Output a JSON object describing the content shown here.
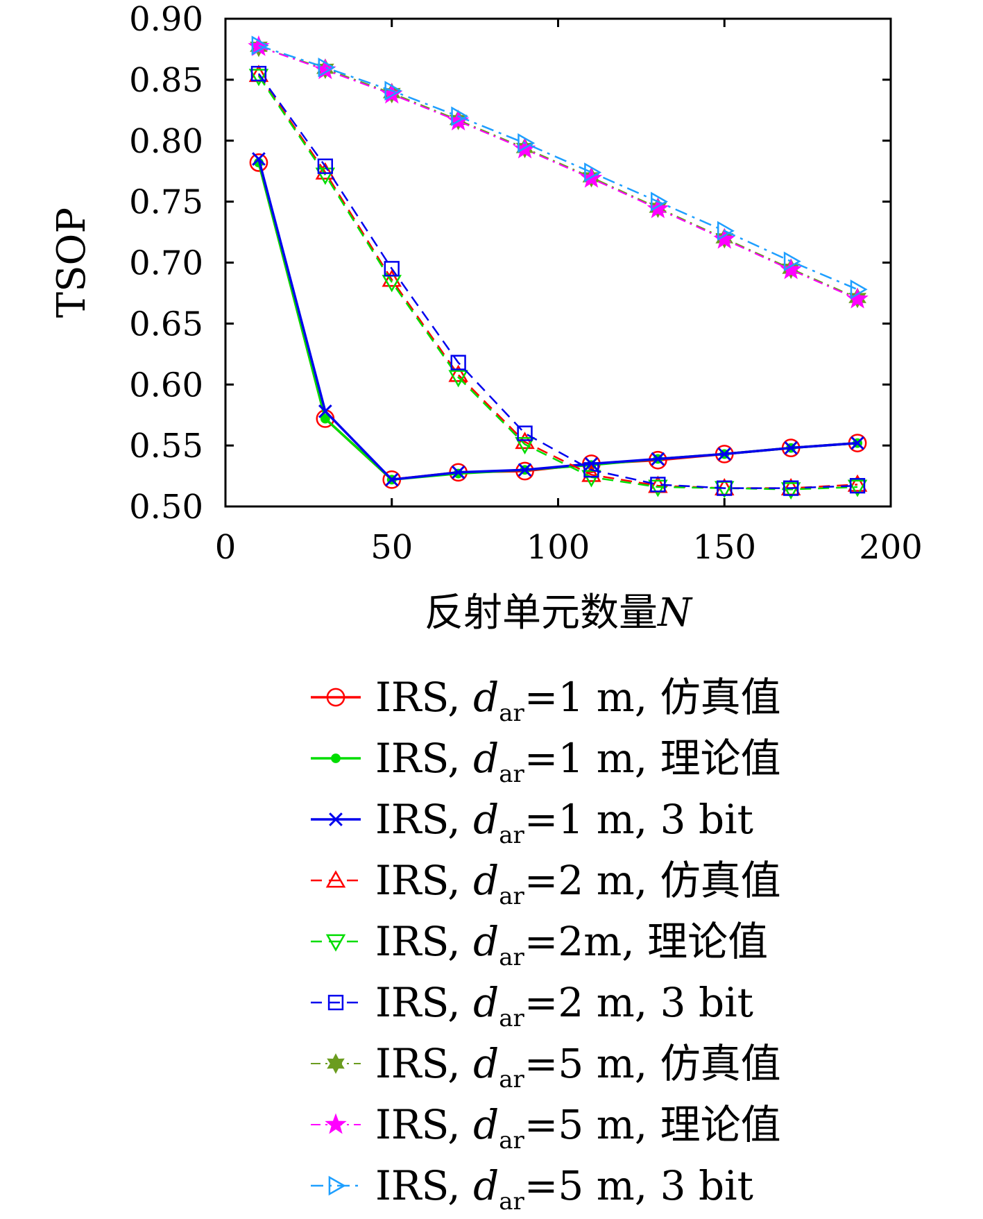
{
  "chart_data": {
    "type": "line",
    "title": "",
    "xlabel": "反射单元数量",
    "xlabel_var": "N",
    "ylabel": "TSOP",
    "xlim": [
      0,
      200
    ],
    "ylim": [
      0.5,
      0.9
    ],
    "xticks": [
      0,
      50,
      100,
      150,
      200
    ],
    "xtick_labels": [
      "0",
      "50",
      "100",
      "150",
      "200"
    ],
    "yticks": [
      0.5,
      0.55,
      0.6,
      0.65,
      0.7,
      0.75,
      0.8,
      0.85,
      0.9
    ],
    "ytick_labels": [
      "0.50",
      "0.55",
      "0.60",
      "0.65",
      "0.70",
      "0.75",
      "0.80",
      "0.85",
      "0.90"
    ],
    "grid": false,
    "legend_position": "below",
    "x": [
      10,
      30,
      50,
      70,
      90,
      110,
      130,
      150,
      170,
      190
    ],
    "series": [
      {
        "name": "IRS, d_ar=1 m, 仿真值",
        "legend": {
          "pre": "IRS, ",
          "d": "d",
          "sub": "ar",
          "post": "=1 m, 仿真值"
        },
        "color": "#ff0000",
        "dash": "solid",
        "marker": "circle",
        "values": [
          0.782,
          0.572,
          0.522,
          0.528,
          0.529,
          0.535,
          0.538,
          0.543,
          0.548,
          0.552
        ]
      },
      {
        "name": "IRS, d_ar=1 m, 理论值",
        "legend": {
          "pre": "IRS, ",
          "d": "d",
          "sub": "ar",
          "post": "=1 m, 理论值"
        },
        "color": "#00dd00",
        "dash": "solid",
        "marker": "dot",
        "values": [
          0.782,
          0.572,
          0.522,
          0.527,
          0.53,
          0.534,
          0.539,
          0.543,
          0.548,
          0.552
        ]
      },
      {
        "name": "IRS, d_ar=1 m, 3 bit",
        "legend": {
          "pre": "IRS, ",
          "d": "d",
          "sub": "ar",
          "post": "=1 m, 3 bit"
        },
        "color": "#0000ee",
        "dash": "solid",
        "marker": "x",
        "values": [
          0.785,
          0.578,
          0.522,
          0.528,
          0.53,
          0.535,
          0.539,
          0.543,
          0.548,
          0.552
        ]
      },
      {
        "name": "IRS, d_ar=2 m, 仿真值",
        "legend": {
          "pre": "IRS, ",
          "d": "d",
          "sub": "ar",
          "post": "=2 m, 仿真值"
        },
        "color": "#ff0000",
        "dash": "dashed",
        "marker": "triangle-up",
        "values": [
          0.854,
          0.774,
          0.686,
          0.608,
          0.553,
          0.526,
          0.517,
          0.515,
          0.515,
          0.518
        ]
      },
      {
        "name": "IRS, d_ar=2m, 理论值",
        "legend": {
          "pre": "IRS, ",
          "d": "d",
          "sub": "ar",
          "post": "=2m, 理论值"
        },
        "color": "#00dd00",
        "dash": "dashed",
        "marker": "triangle-down",
        "values": [
          0.853,
          0.772,
          0.684,
          0.606,
          0.551,
          0.524,
          0.516,
          0.515,
          0.514,
          0.516
        ]
      },
      {
        "name": "IRS, d_ar=2 m, 3 bit",
        "legend": {
          "pre": "IRS, ",
          "d": "d",
          "sub": "ar",
          "post": "=2 m, 3 bit"
        },
        "color": "#0000ee",
        "dash": "dashed",
        "marker": "square",
        "values": [
          0.855,
          0.779,
          0.695,
          0.618,
          0.56,
          0.53,
          0.518,
          0.515,
          0.515,
          0.517
        ]
      },
      {
        "name": "IRS, d_ar=5 m, 仿真值",
        "legend": {
          "pre": "IRS, ",
          "d": "d",
          "sub": "ar",
          "post": "=5 m, 仿真值"
        },
        "color": "#6b9c1f",
        "dash": "dashdot-thin",
        "marker": "hexagram",
        "values": [
          0.877,
          0.859,
          0.839,
          0.817,
          0.794,
          0.77,
          0.745,
          0.72,
          0.695,
          0.671
        ]
      },
      {
        "name": "IRS, d_ar=5 m, 理论值",
        "legend": {
          "pre": "IRS, ",
          "d": "d",
          "sub": "ar",
          "post": "=5 m, 理论值"
        },
        "color": "#ff00ff",
        "dash": "dashdot-thin",
        "marker": "star",
        "values": [
          0.877,
          0.858,
          0.838,
          0.816,
          0.793,
          0.769,
          0.744,
          0.719,
          0.694,
          0.67
        ]
      },
      {
        "name": "IRS, d_ar=5 m, 3 bit",
        "legend": {
          "pre": "IRS, ",
          "d": "d",
          "sub": "ar",
          "post": "=5 m, 3 bit"
        },
        "color": "#1e9fff",
        "dash": "dashdot",
        "marker": "triangle-right",
        "values": [
          0.878,
          0.86,
          0.841,
          0.82,
          0.798,
          0.774,
          0.75,
          0.726,
          0.701,
          0.678
        ]
      }
    ]
  }
}
